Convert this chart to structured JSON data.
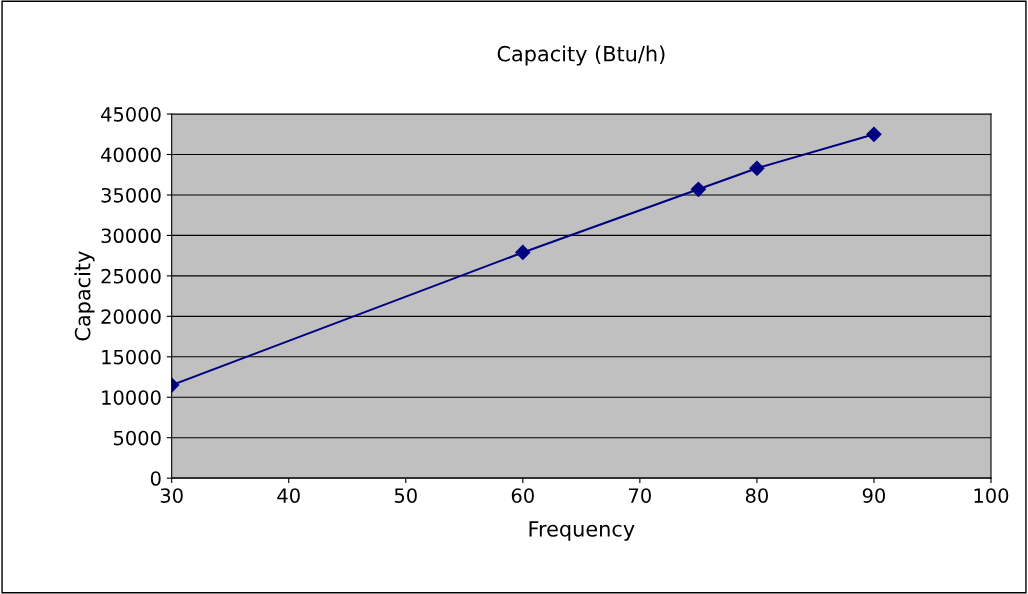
{
  "chart_data": {
    "type": "line",
    "title": "Capacity (Btu/h)",
    "xlabel": "Frequency",
    "ylabel": "Capacity",
    "x": [
      30,
      60,
      75,
      80,
      90
    ],
    "series": [
      {
        "color": "#000080",
        "values": [
          11500,
          27900,
          35700,
          38300,
          42500
        ]
      }
    ],
    "xlim": [
      30,
      100
    ],
    "xticks": [
      30,
      40,
      50,
      60,
      70,
      80,
      90,
      100
    ],
    "ylim": [
      0,
      45000
    ],
    "yticks": [
      0,
      5000,
      10000,
      15000,
      20000,
      25000,
      30000,
      35000,
      40000,
      45000
    ],
    "grid": "y",
    "legend": false,
    "marker": "diamond",
    "line_style": "solid"
  }
}
